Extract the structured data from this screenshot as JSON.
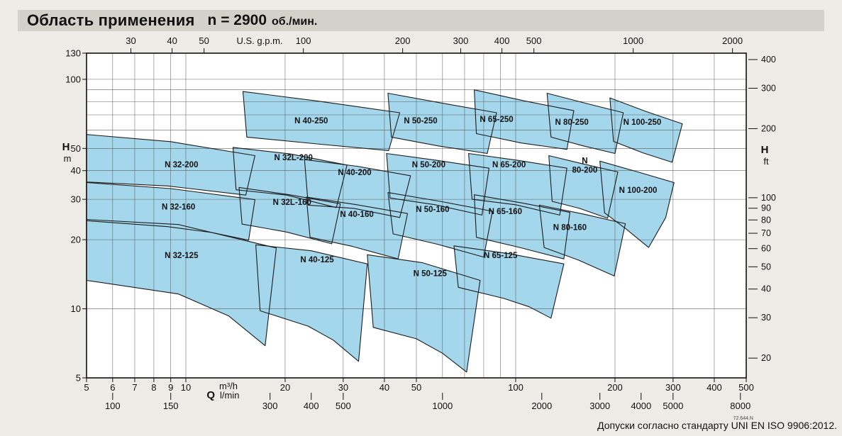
{
  "title": {
    "main": "Область применения",
    "speed": "n = 2900",
    "unit": "об./мин."
  },
  "footer": {
    "tolerance_note": "Допуски согласно стандарту UNI EN ISO 9906:2012.",
    "doc_code": "72.644.N"
  },
  "colors": {
    "page_bg": "#edece7",
    "titlebar_bg": "#d2d2cb",
    "plot_bg": "#ffffff",
    "region_fill": "#a5d7ec",
    "region_stroke": "#1b1b1b",
    "grid": "#4a4a4a",
    "frame": "#111111",
    "text": "#111111"
  },
  "chart_data": {
    "type": "area",
    "subtype": "pump-application-range",
    "title": "Область применения n = 2900 об./мин.",
    "grid": true,
    "legend": "none",
    "x_axis": {
      "label": "Q",
      "unit": "m³/h",
      "scale": "log",
      "min": 5,
      "max": 500,
      "ticks_labeled": [
        5,
        6,
        7,
        8,
        9,
        10,
        20,
        30,
        40,
        50,
        100,
        200,
        300,
        400,
        500
      ],
      "gridlines": [
        6,
        7,
        8,
        9,
        10,
        20,
        30,
        40,
        50,
        60,
        70,
        80,
        90,
        100,
        200,
        300,
        400,
        500
      ]
    },
    "x_axis_secondary": {
      "unit": "l/min",
      "per_m3h": 16.6667,
      "ticks": [
        100,
        150,
        300,
        400,
        500,
        1000,
        2000,
        3000,
        4000,
        5000,
        8000
      ]
    },
    "top_axis": {
      "unit": "U.S. g.p.m.",
      "per_m3h": 4.4029,
      "ticks": [
        30,
        40,
        50,
        100,
        200,
        300,
        400,
        500,
        1000,
        2000
      ]
    },
    "y_axis": {
      "label": "H",
      "unit": "m",
      "scale": "log",
      "min": 5,
      "max": 130,
      "ticks_labeled": [
        130,
        100,
        50,
        40,
        30,
        20,
        10,
        5
      ],
      "gridlines": [
        10,
        20,
        30,
        40,
        50,
        60,
        70,
        80,
        90,
        100
      ]
    },
    "right_axis": {
      "label": "H",
      "unit": "ft",
      "per_m": 3.2808,
      "ticks": [
        400,
        300,
        200,
        100,
        90,
        80,
        70,
        60,
        50,
        40,
        30,
        20
      ]
    },
    "regions": [
      {
        "label": "N 32-125",
        "label_pos": [
          9.7,
          17.1
        ],
        "points": [
          [
            5,
            24.5
          ],
          [
            9.5,
            23.3
          ],
          [
            18.8,
            18.4
          ],
          [
            17.4,
            6.9
          ],
          [
            13.5,
            9.3
          ],
          [
            9.5,
            11.6
          ],
          [
            5,
            13.3
          ]
        ]
      },
      {
        "label": "N 40-125",
        "label_pos": [
          25,
          16.4
        ],
        "points": [
          [
            16.3,
            19.0
          ],
          [
            24,
            17.9
          ],
          [
            35.5,
            15.7
          ],
          [
            33.4,
            5.9
          ],
          [
            28,
            7.3
          ],
          [
            23.5,
            8.4
          ],
          [
            16.8,
            9.8
          ]
        ]
      },
      {
        "label": "N 50-125",
        "label_pos": [
          55,
          14.3
        ],
        "points": [
          [
            35.5,
            17.2
          ],
          [
            52,
            15.9
          ],
          [
            78,
            13.3
          ],
          [
            71,
            5.3
          ],
          [
            60,
            6.4
          ],
          [
            50,
            7.4
          ],
          [
            37,
            8.3
          ]
        ]
      },
      {
        "label": "N 65-125",
        "label_pos": [
          90,
          17.1
        ],
        "points": [
          [
            65,
            18.8
          ],
          [
            95,
            17.4
          ],
          [
            140,
            15.7
          ],
          [
            128,
            9.1
          ],
          [
            110,
            10.2
          ],
          [
            92,
            11.1
          ],
          [
            67,
            12.4
          ]
        ]
      },
      {
        "label": "N 32-160",
        "label_pos": [
          9.5,
          27.9
        ],
        "points": [
          [
            5,
            35.5
          ],
          [
            9,
            33.4
          ],
          [
            16.2,
            29.9
          ],
          [
            15.5,
            19.9
          ],
          [
            12,
            21.5
          ],
          [
            8.8,
            22.8
          ],
          [
            5,
            24.2
          ]
        ]
      },
      {
        "label": "N 32L-160",
        "label_pos": [
          21,
          29.2
        ],
        "points": [
          [
            14.5,
            33.8
          ],
          [
            20.6,
            31.4
          ],
          [
            29.4,
            28.7
          ],
          [
            27.7,
            19.2
          ],
          [
            20.2,
            21.6
          ],
          [
            14.8,
            23.4
          ]
        ]
      },
      {
        "label": "N 40-160",
        "label_pos": [
          33,
          25.9
        ],
        "points": [
          [
            23.2,
            30.7
          ],
          [
            33,
            28.4
          ],
          [
            47,
            26.0
          ],
          [
            44,
            16.5
          ],
          [
            32,
            18.7
          ],
          [
            23.8,
            20.5
          ]
        ]
      },
      {
        "label": "N 50-160",
        "label_pos": [
          56,
          27.2
        ],
        "points": [
          [
            41,
            32.1
          ],
          [
            59,
            29.4
          ],
          [
            85,
            26.6
          ],
          [
            80,
            16.8
          ],
          [
            58,
            19.1
          ],
          [
            42.5,
            21.2
          ]
        ]
      },
      {
        "label": "N 65-160",
        "label_pos": [
          93,
          26.6
        ],
        "points": [
          [
            74.9,
            31.4
          ],
          [
            105,
            28.9
          ],
          [
            146,
            26.3
          ],
          [
            140,
            16.5
          ],
          [
            103,
            18.5
          ],
          [
            76,
            20.5
          ]
        ]
      },
      {
        "label": "N 80-160",
        "label_pos": [
          146,
          22.7
        ],
        "points": [
          [
            118,
            28.3
          ],
          [
            160,
            25.9
          ],
          [
            215,
            23.5
          ],
          [
            199,
            13.9
          ],
          [
            155,
            16.3
          ],
          [
            122,
            18.5
          ]
        ]
      },
      {
        "label": "N 32-200",
        "label_pos": [
          9.7,
          42.6
        ],
        "points": [
          [
            5,
            57.5
          ],
          [
            9,
            53.5
          ],
          [
            16.2,
            46.5
          ],
          [
            15.2,
            31.3
          ],
          [
            8.8,
            34.3
          ],
          [
            5,
            35.7
          ]
        ]
      },
      {
        "label": "N 32L-200",
        "label_pos": [
          21.2,
          45.7
        ],
        "points": [
          [
            13.9,
            50.5
          ],
          [
            20.7,
            47.3
          ],
          [
            30.8,
            42.3
          ],
          [
            28.6,
            27.6
          ],
          [
            20.2,
            31.3
          ],
          [
            14.2,
            33.0
          ]
        ]
      },
      {
        "label": "N 40-200",
        "label_pos": [
          32.5,
          39.3
        ],
        "points": [
          [
            22.9,
            44.7
          ],
          [
            33,
            41.8
          ],
          [
            48,
            38.0
          ],
          [
            44.5,
            25.0
          ],
          [
            32.3,
            27.4
          ],
          [
            23.5,
            28.3
          ]
        ]
      },
      {
        "label": "N 50-200",
        "label_pos": [
          54.5,
          42.6
        ],
        "points": [
          [
            40.6,
            47.5
          ],
          [
            58,
            44.3
          ],
          [
            83,
            41.0
          ],
          [
            79,
            25.6
          ],
          [
            57,
            28.4
          ],
          [
            41.6,
            30.4
          ]
        ]
      },
      {
        "label": "N 65-200",
        "label_pos": [
          95.5,
          42.6
        ],
        "points": [
          [
            72,
            47.5
          ],
          [
            102,
            44.3
          ],
          [
            143,
            41.0
          ],
          [
            136,
            25.6
          ],
          [
            100,
            28.4
          ],
          [
            73.7,
            30.0
          ]
        ]
      },
      {
        "label": "N 80-200",
        "label_lines": [
          "N",
          "80-200"
        ],
        "label_pos": [
          162,
          41.5
        ],
        "points": [
          [
            126,
            46.5
          ],
          [
            160,
            42.8
          ],
          [
            204,
            39.5
          ],
          [
            190,
            24.8
          ],
          [
            156,
            27.4
          ],
          [
            129,
            29.4
          ]
        ]
      },
      {
        "label": "N 100-200",
        "label_pos": [
          235,
          32.9
        ],
        "points": [
          [
            180,
            44.0
          ],
          [
            233,
            39.6
          ],
          [
            302,
            35.5
          ],
          [
            285,
            25.0
          ],
          [
            253,
            18.5
          ],
          [
            215,
            22.4
          ],
          [
            186,
            26.2
          ]
        ]
      },
      {
        "label": "N 40-250",
        "label_pos": [
          24,
          66.2
        ],
        "points": [
          [
            14.9,
            88.5
          ],
          [
            25,
            80.5
          ],
          [
            44.5,
            71.5
          ],
          [
            41.2,
            48.9
          ],
          [
            25,
            52.3
          ],
          [
            15.3,
            56.0
          ]
        ]
      },
      {
        "label": "N 50-250",
        "label_pos": [
          51.5,
          66.2
        ],
        "points": [
          [
            41,
            87.0
          ],
          [
            60,
            78.7
          ],
          [
            87.5,
            71.5
          ],
          [
            82,
            47.5
          ],
          [
            58,
            51.3
          ],
          [
            42,
            56.0
          ]
        ]
      },
      {
        "label": "N 65-250",
        "label_pos": [
          87.5,
          67.0
        ],
        "points": [
          [
            74.9,
            90.0
          ],
          [
            106,
            80.6
          ],
          [
            150,
            73.0
          ],
          [
            143,
            49.5
          ],
          [
            104,
            52.8
          ],
          [
            76,
            58.0
          ]
        ]
      },
      {
        "label": "N 80-250",
        "label_pos": [
          148,
          65.2
        ],
        "points": [
          [
            124.5,
            87.0
          ],
          [
            163,
            78.7
          ],
          [
            212,
            71.5
          ],
          [
            200,
            47.5
          ],
          [
            160,
            51.3
          ],
          [
            128,
            56.0
          ]
        ]
      },
      {
        "label": "N 100-250",
        "label_pos": [
          242,
          65.2
        ],
        "points": [
          [
            193,
            83.0
          ],
          [
            248,
            72.5
          ],
          [
            320,
            64.0
          ],
          [
            298,
            43.5
          ],
          [
            243,
            47.8
          ],
          [
            198,
            53.6
          ]
        ]
      }
    ]
  }
}
